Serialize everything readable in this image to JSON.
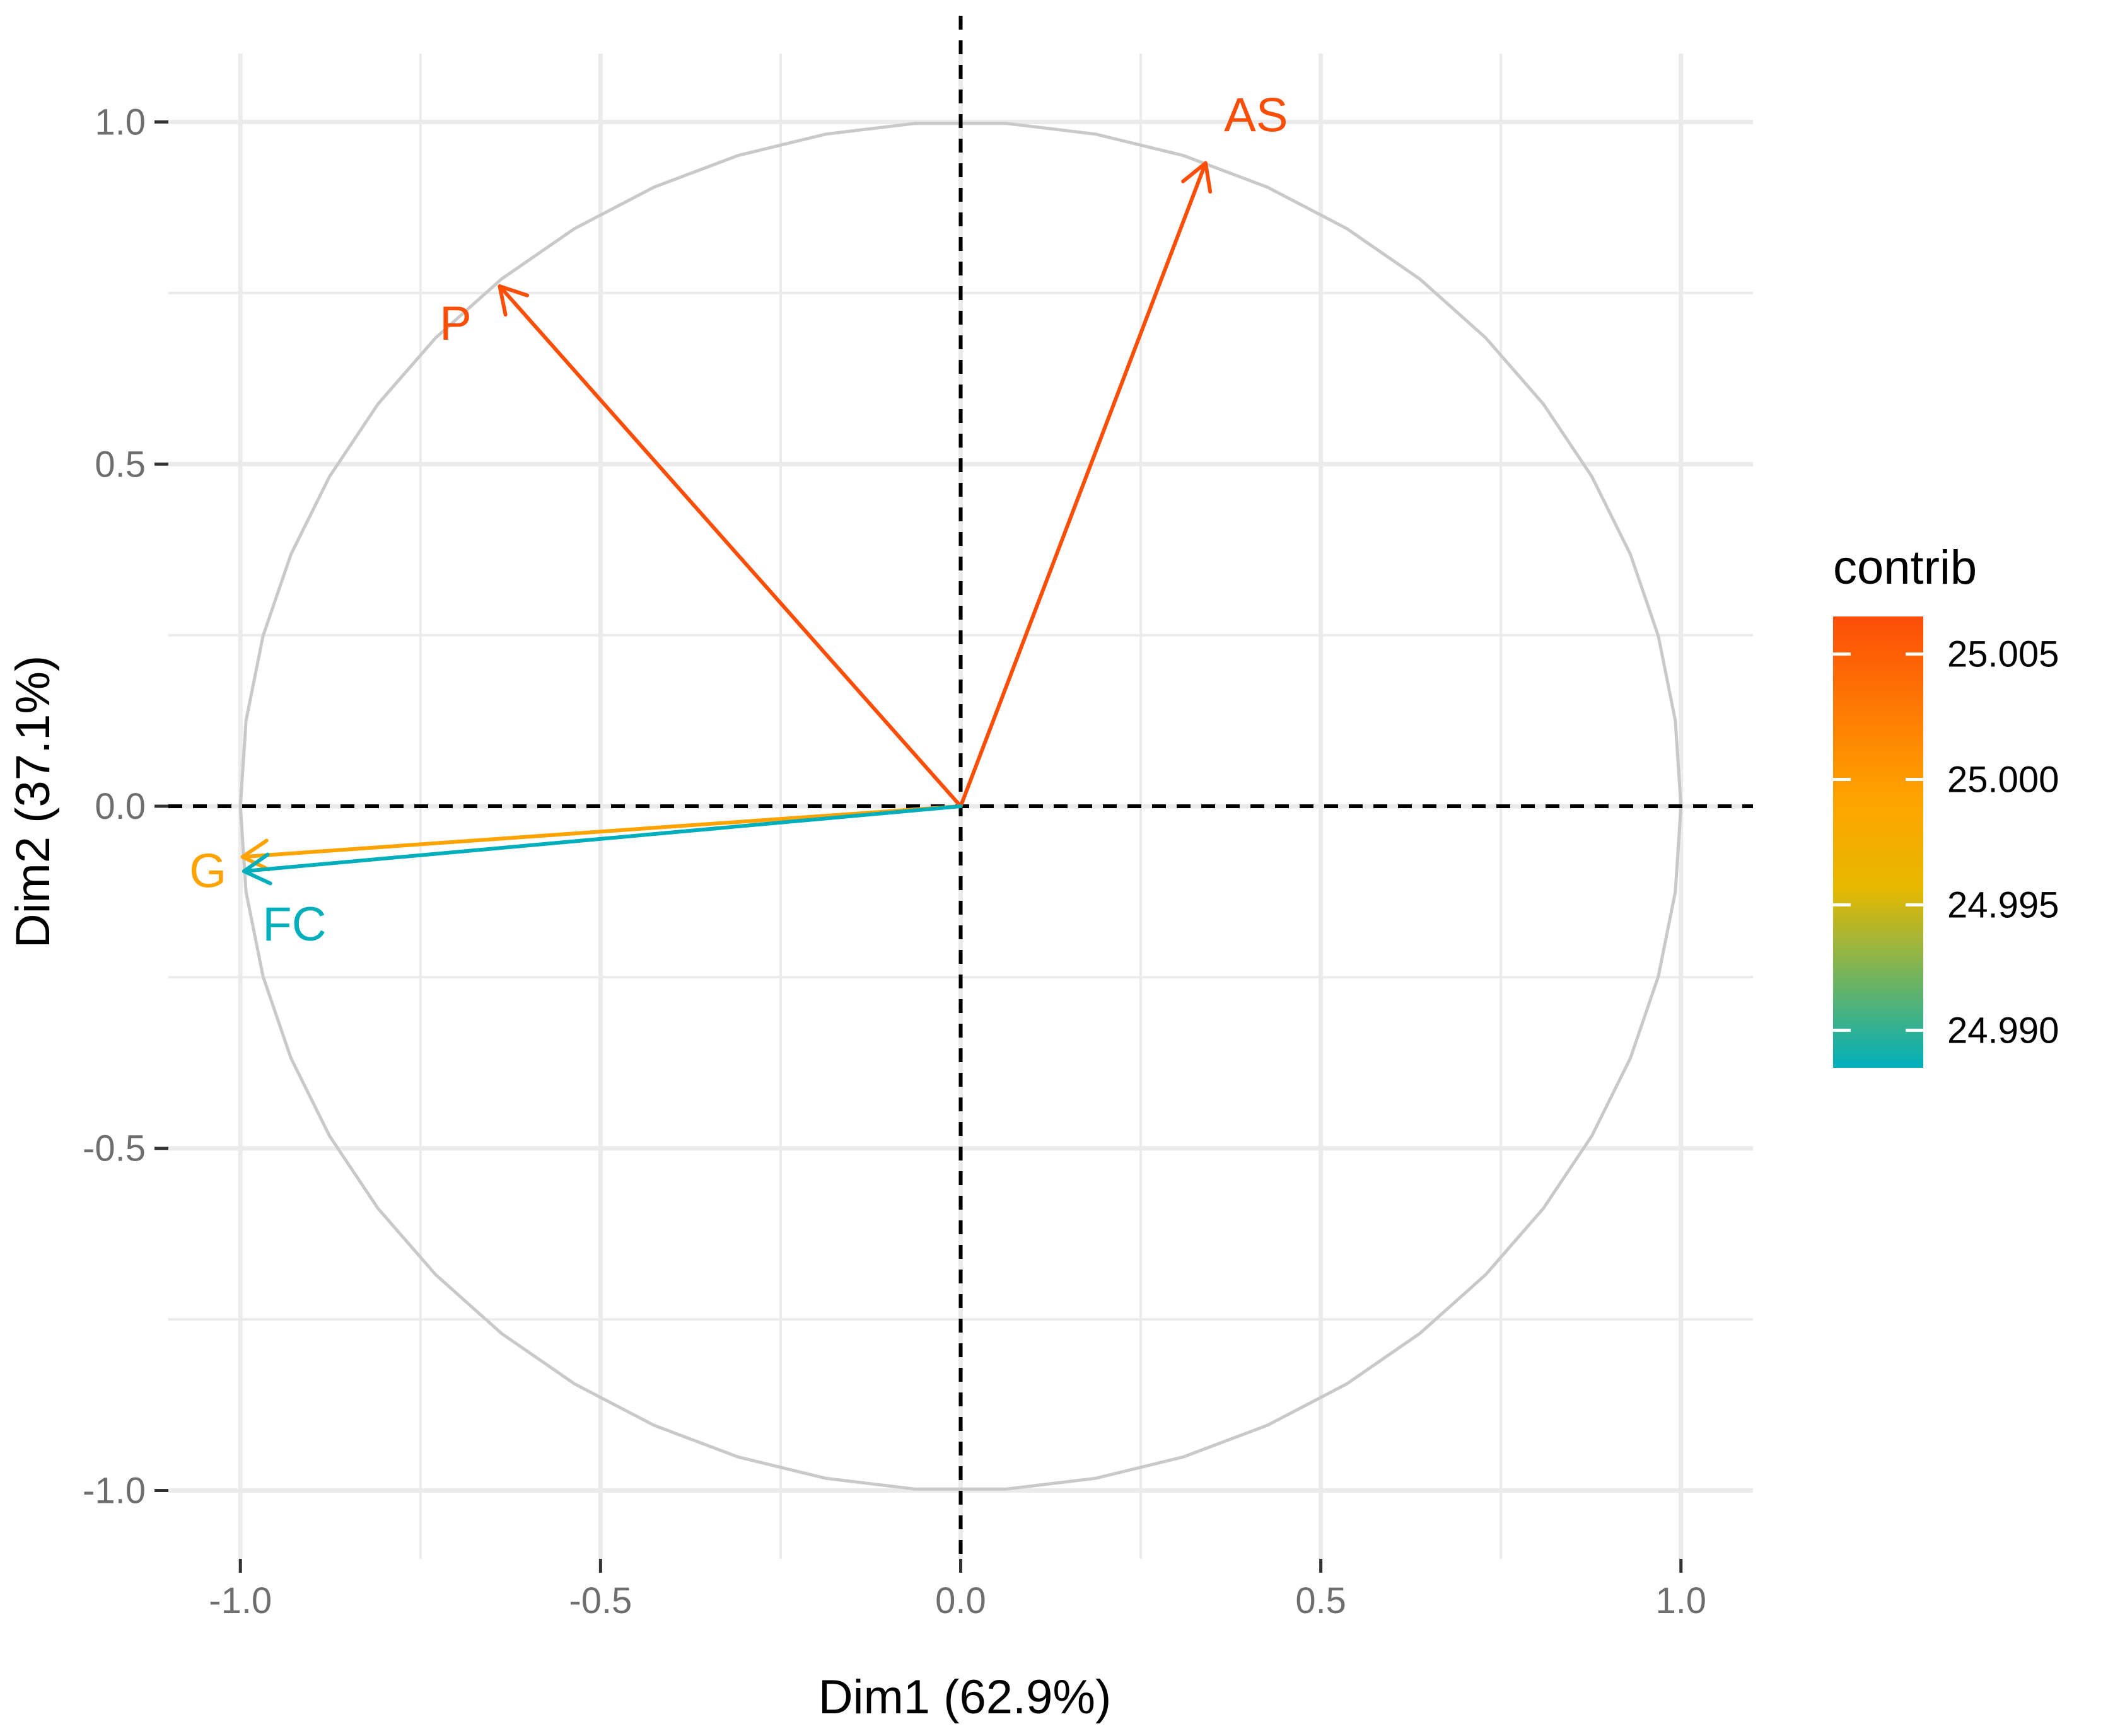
{
  "chart_data": {
    "type": "pca-correlation-circle",
    "xlabel": "Dim1 (62.9%)",
    "ylabel": "Dim2 (37.1%)",
    "xlim": [
      -1.1,
      1.1
    ],
    "ylim": [
      -1.1,
      1.1
    ],
    "xticks": [
      -1.0,
      -0.5,
      0.0,
      0.5,
      1.0
    ],
    "xtick_labels": [
      "-1.0",
      "-0.5",
      "0.0",
      "0.5",
      "1.0"
    ],
    "yticks": [
      -1.0,
      -0.5,
      0.0,
      0.5,
      1.0
    ],
    "ytick_labels": [
      "-1.0",
      "-0.5",
      "0.0",
      "0.5",
      "1.0"
    ],
    "grid": true,
    "variables": [
      {
        "name": "AS",
        "x": 0.34,
        "y": 0.94,
        "contrib": 25.006,
        "color": "#FC4E07"
      },
      {
        "name": "P",
        "x": -0.64,
        "y": 0.76,
        "contrib": 25.006,
        "color": "#FC4E07"
      },
      {
        "name": "G",
        "x": -0.997,
        "y": -0.074,
        "contrib": 24.999,
        "color": "#FFA300"
      },
      {
        "name": "FC",
        "x": -0.995,
        "y": -0.095,
        "contrib": 24.989,
        "color": "#00AFBB"
      }
    ],
    "legend": {
      "title": "contrib",
      "placement": "right",
      "ticks": [
        "25.005",
        "25.000",
        "24.995",
        "24.990"
      ],
      "tick_values": [
        25.005,
        25.0,
        24.995,
        24.99
      ],
      "range": [
        24.9885,
        25.0065
      ],
      "colors": [
        "#FC4E07",
        "#FFA300",
        "#E7B800",
        "#00AFBB"
      ]
    }
  },
  "colors": {
    "grid": "#ebebeb",
    "circle": "#c9c9c9",
    "reference_line": "#000000",
    "tick": "#333333"
  }
}
